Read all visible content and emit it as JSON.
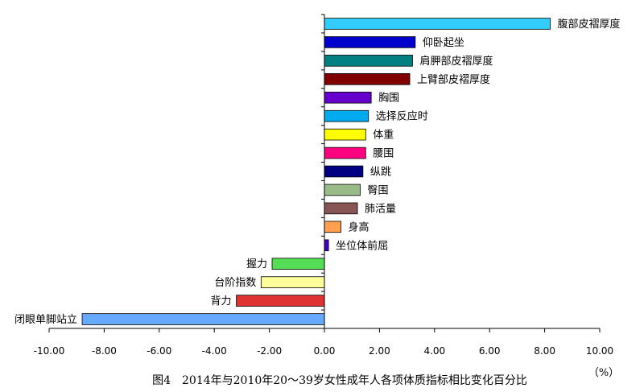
{
  "chart_data": {
    "type": "bar",
    "orientation": "horizontal",
    "title": "图4　2014年与2010年20～39岁女性成年人各项体质指标相比变化百分比",
    "unit_label": "（%）",
    "xlim": [
      -10,
      10
    ],
    "xticks": [
      "-10.00",
      "-8.00",
      "-6.00",
      "-4.00",
      "-2.00",
      "0.00",
      "2.00",
      "4.00",
      "6.00",
      "8.00",
      "10.00"
    ],
    "grid": false,
    "legend": "none",
    "categories": [
      "腹部皮褶厚度",
      "仰卧起坐",
      "肩胛部皮褶厚度",
      "上臂部皮褶厚度",
      "胸围",
      "选择反应时",
      "体重",
      "腰围",
      "纵跳",
      "臀围",
      "肺活量",
      "身高",
      "坐位体前屈",
      "握力",
      "台阶指数",
      "背力",
      "闭眼单脚站立"
    ],
    "values": [
      8.2,
      3.3,
      3.2,
      3.1,
      1.7,
      1.6,
      1.5,
      1.5,
      1.4,
      1.3,
      1.2,
      0.6,
      0.15,
      -1.9,
      -2.3,
      -3.2,
      -8.8
    ],
    "colors": [
      "#33CCFF",
      "#0000CC",
      "#008080",
      "#800000",
      "#6600CC",
      "#00AAEE",
      "#FFFF00",
      "#FF0080",
      "#000080",
      "#99BB88",
      "#885555",
      "#FFA050",
      "#4400CC",
      "#55DD55",
      "#FFFF99",
      "#DD3333",
      "#66AAFF"
    ]
  }
}
